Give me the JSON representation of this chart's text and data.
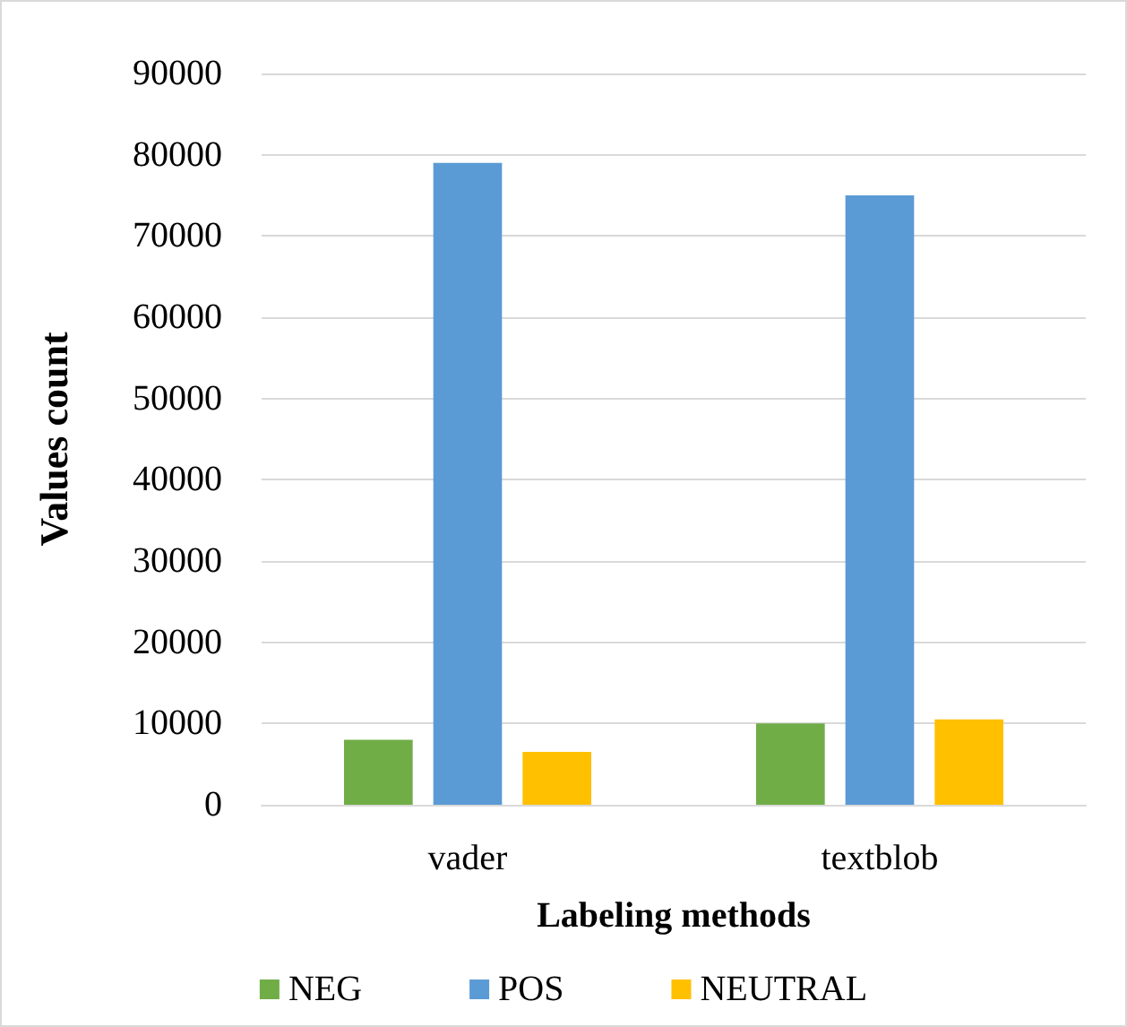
{
  "chart_data": {
    "type": "bar",
    "xlabel": "Labeling methods",
    "ylabel": "Values count",
    "categories": [
      "vader",
      "textblob"
    ],
    "series": [
      {
        "name": "NEG",
        "color": "#70ad47",
        "values": [
          8000,
          10000
        ]
      },
      {
        "name": "POS",
        "color": "#5b9bd5",
        "values": [
          79000,
          75000
        ]
      },
      {
        "name": "NEUTRAL",
        "color": "#ffc000",
        "values": [
          6500,
          10500
        ]
      }
    ],
    "ylim": [
      0,
      90000
    ],
    "yticks": [
      0,
      10000,
      20000,
      30000,
      40000,
      50000,
      60000,
      70000,
      80000,
      90000
    ],
    "grid": "y",
    "legend": "bottom"
  }
}
